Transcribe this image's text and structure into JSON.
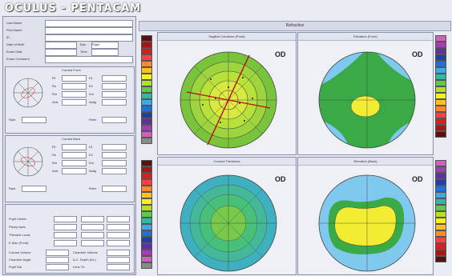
{
  "app": {
    "brand": "OCULUS - PENTACAM",
    "view_title": "Refractive"
  },
  "patient_fields": [
    {
      "label": "Last Name",
      "value": ""
    },
    {
      "label": "First Name",
      "value": ""
    },
    {
      "label": "ID",
      "value": ""
    },
    {
      "label": "Date of Birth",
      "value": "",
      "extra_label": "Eye",
      "extra_value": "Right"
    },
    {
      "label": "Exam Date",
      "value": "",
      "extra_label": "Time",
      "extra_value": ""
    },
    {
      "label": "Exam Comment",
      "value": ""
    }
  ],
  "cornea_front": {
    "header": "Cornea Front",
    "rows": [
      {
        "k": "Rf",
        "v1": "",
        "k2": "K1",
        "v2": ""
      },
      {
        "k": "Rs",
        "v1": "",
        "k2": "K2",
        "v2": ""
      },
      {
        "k": "Rm",
        "v1": "",
        "k2": "Km",
        "v2": ""
      },
      {
        "k": "Axis",
        "v1": "",
        "k2": "Astig",
        "v2": ""
      },
      {
        "k": "Rper",
        "v1": "",
        "k2": "Rmin",
        "v2": ""
      }
    ]
  },
  "cornea_back": {
    "header": "Cornea Back",
    "rows": [
      {
        "k": "Rf",
        "v1": "",
        "k2": "K1",
        "v2": ""
      },
      {
        "k": "Rs",
        "v1": "",
        "k2": "K2",
        "v2": ""
      },
      {
        "k": "Rm",
        "v1": "",
        "k2": "Km",
        "v2": ""
      },
      {
        "k": "Axis",
        "v1": "",
        "k2": "Astig",
        "v2": ""
      },
      {
        "k": "Rper",
        "v1": "",
        "k2": "Rmin",
        "v2": ""
      }
    ]
  },
  "pachy": {
    "rows": [
      {
        "k": "Pupil Center",
        "v1": "",
        "v2": "",
        "v3": ""
      },
      {
        "k": "Pachy Apex",
        "v1": "",
        "v2": "",
        "v3": ""
      },
      {
        "k": "Thinnest Locat.",
        "v1": "",
        "v2": "",
        "v3": ""
      },
      {
        "k": "K Max (Front)",
        "v1": "",
        "v2": "",
        "v3": ""
      }
    ],
    "extra_rows": [
      {
        "k": "Cornea Volume",
        "v1": "",
        "k2": "Chamber Volume",
        "v2": ""
      },
      {
        "k": "Chamber Angle",
        "v1": "",
        "k2": "A.C. Depth (Int.)",
        "v2": ""
      },
      {
        "k": "Pupil Dia",
        "v1": "",
        "k2": "",
        "v2": ""
      },
      {
        "k": "Lens Th.",
        "v1": "",
        "k2": "",
        "v2": ""
      }
    ]
  },
  "panels": [
    {
      "title": "Sagittal Curvature (Front)",
      "eye": "OD",
      "type": "sagittal"
    },
    {
      "title": "Elevation (Front)",
      "eye": "OD",
      "type": "elev_front"
    },
    {
      "title": "Corneal Thickness",
      "eye": "OD",
      "type": "pachy"
    },
    {
      "title": "Elevation (Back)",
      "eye": "OD",
      "type": "elev_back"
    }
  ],
  "scales": {
    "left_top": [
      "#5a1010",
      "#a01818",
      "#d02020",
      "#ff4040",
      "#ff8a2a",
      "#ffc020",
      "#f6f020",
      "#b8e020",
      "#60c850",
      "#30b8a0",
      "#40a8e8",
      "#2070d8",
      "#2040a8",
      "#6030a0",
      "#a040b0",
      "#d060c0",
      "#8a8a8a"
    ],
    "left_bottom": [
      "#5a1010",
      "#a01818",
      "#d02020",
      "#ff4040",
      "#ff8a2a",
      "#ffc020",
      "#f6f020",
      "#b8e020",
      "#60c850",
      "#30b8a0",
      "#40a8e8",
      "#2070d8",
      "#2040a8",
      "#6030a0",
      "#a040b0",
      "#d060c0",
      "#8a8a8a"
    ],
    "right_top": [
      "#d060c0",
      "#a040b0",
      "#6030a0",
      "#2040a8",
      "#2070d8",
      "#40a8e8",
      "#30b8a0",
      "#60c850",
      "#b8e020",
      "#f6f020",
      "#ffc020",
      "#ff8a2a",
      "#ff4040",
      "#d02020",
      "#a01818",
      "#5a1010"
    ],
    "right_bottom": [
      "#d060c0",
      "#a040b0",
      "#6030a0",
      "#2040a8",
      "#2070d8",
      "#40a8e8",
      "#30b8a0",
      "#60c850",
      "#b8e020",
      "#f6f020",
      "#ffc020",
      "#ff8a2a",
      "#ff4040",
      "#d02020",
      "#a01818",
      "#5a1010"
    ]
  },
  "colors": {
    "sag_outer": "#7ac43c",
    "sag_mid": "#b8e23a",
    "sag_inner": "#e4ec44",
    "elev_bg": "#3aaa46",
    "elev_blue": "#7fc8ee",
    "elev_yellow": "#f2ec32",
    "pachy_outer": "#3fb0bf",
    "pachy_mid": "#49c07a",
    "pachy_inner": "#79c94c",
    "red_line": "#b01010"
  }
}
